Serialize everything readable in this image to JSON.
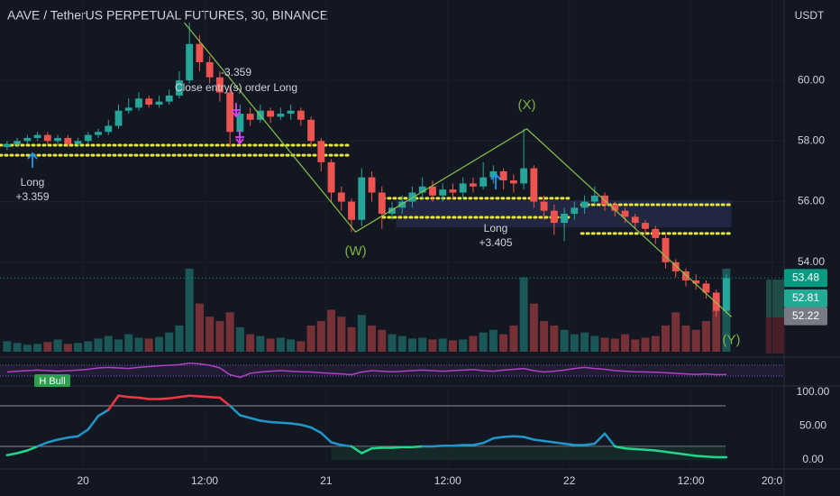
{
  "chart_data": {
    "type": "candlestick",
    "title": "AAVE / TetherUS PERPETUAL FUTURES, 30, BINANCE",
    "y_unit": "USDT",
    "xlim": [
      -8.2,
      69.2
    ],
    "xticks": [
      {
        "value": 0,
        "label": "20"
      },
      {
        "value": 12,
        "label": "12:00"
      },
      {
        "value": 24,
        "label": "21"
      },
      {
        "value": 36,
        "label": "12:00"
      },
      {
        "value": 48,
        "label": "22"
      },
      {
        "value": 60,
        "label": "12:00"
      },
      {
        "value": 68,
        "label": "20:0"
      }
    ],
    "ylim": [
      51.05,
      62.65
    ],
    "yticks": [
      {
        "value": 54,
        "label": "54.00"
      },
      {
        "value": 56,
        "label": "56.00"
      },
      {
        "value": 58,
        "label": "58.00"
      },
      {
        "value": 60,
        "label": "60.00"
      }
    ],
    "up_color": "#26a69a",
    "down_color": "#ef5350",
    "x": [
      -7.5,
      -6.5,
      -5.5,
      -4.5,
      -3.5,
      -2.5,
      -1.5,
      -0.5,
      0.5,
      1.5,
      2.5,
      3.5,
      4.5,
      5.5,
      6.5,
      7.5,
      8.5,
      9.5,
      10.5,
      11.5,
      12.5,
      13.5,
      14.5,
      15.5,
      16.5,
      17.5,
      18.5,
      19.5,
      20.5,
      21.5,
      22.5,
      23.5,
      24.5,
      25.5,
      26.5,
      27.5,
      28.5,
      29.5,
      30.5,
      31.5,
      32.5,
      33.5,
      34.5,
      35.5,
      36.5,
      37.5,
      38.5,
      39.5,
      40.5,
      41.5,
      42.5,
      43.5,
      44.5,
      45.5,
      46.5,
      47.5,
      48.5,
      49.5,
      50.5,
      51.5,
      52.5,
      53.5,
      54.5,
      55.5,
      56.5,
      57.5,
      58.5,
      59.5,
      60.5,
      61.5,
      62.5,
      63.5
    ],
    "open": [
      57.8,
      57.9,
      58.0,
      58.1,
      58.2,
      58.0,
      58.1,
      57.9,
      58.0,
      58.2,
      58.3,
      58.5,
      59.0,
      59.1,
      59.4,
      59.2,
      59.3,
      59.5,
      60.0,
      61.2,
      60.6,
      60.1,
      59.6,
      58.3,
      58.9,
      58.7,
      59.0,
      58.8,
      58.9,
      59.0,
      58.7,
      58.0,
      57.3,
      56.3,
      56.0,
      55.4,
      56.8,
      56.3,
      55.6,
      55.8,
      56.0,
      56.3,
      56.5,
      56.2,
      56.4,
      56.3,
      56.6,
      56.5,
      56.8,
      57.0,
      56.7,
      56.6,
      57.1,
      56.0,
      55.7,
      55.3,
      55.6,
      55.8,
      56.0,
      56.2,
      55.9,
      55.7,
      55.5,
      55.3,
      55.1,
      54.8,
      54.0,
      53.7,
      53.4,
      53.3,
      53.0,
      52.4
    ],
    "high": [
      58.0,
      58.1,
      58.2,
      58.3,
      58.3,
      58.2,
      58.2,
      58.1,
      58.3,
      58.4,
      58.7,
      59.2,
      59.4,
      59.6,
      59.5,
      59.5,
      59.7,
      60.3,
      61.9,
      61.5,
      60.8,
      60.3,
      59.8,
      59.2,
      59.1,
      59.2,
      59.1,
      59.1,
      59.2,
      59.1,
      58.8,
      58.1,
      57.4,
      56.5,
      56.1,
      57.1,
      57.0,
      56.5,
      56.0,
      56.2,
      56.5,
      56.8,
      56.7,
      56.6,
      56.6,
      56.8,
      56.8,
      57.3,
      57.2,
      57.1,
      56.9,
      58.4,
      57.2,
      56.2,
      55.9,
      55.8,
      56.0,
      56.2,
      56.5,
      56.3,
      56.0,
      55.8,
      55.6,
      55.4,
      55.2,
      54.9,
      54.1,
      53.8,
      53.6,
      53.4,
      53.1,
      53.6
    ],
    "low": [
      57.7,
      57.8,
      57.9,
      58.0,
      57.9,
      57.9,
      57.8,
      57.8,
      57.9,
      58.1,
      58.2,
      58.4,
      58.9,
      59.0,
      59.1,
      59.1,
      59.2,
      59.4,
      59.9,
      60.3,
      59.9,
      59.3,
      57.8,
      58.1,
      58.5,
      58.6,
      58.6,
      58.7,
      58.7,
      58.5,
      57.8,
      57.0,
      56.0,
      55.7,
      55.0,
      55.2,
      56.0,
      55.1,
      55.4,
      55.6,
      55.8,
      56.1,
      56.0,
      56.0,
      56.1,
      56.1,
      56.3,
      56.4,
      56.6,
      56.4,
      56.3,
      56.4,
      55.8,
      55.4,
      54.9,
      54.7,
      55.4,
      55.6,
      55.9,
      55.7,
      55.5,
      55.3,
      55.1,
      54.9,
      54.6,
      53.8,
      53.5,
      53.2,
      53.1,
      52.8,
      52.2,
      52.3
    ],
    "close": [
      57.9,
      58.0,
      58.1,
      58.2,
      58.0,
      58.1,
      57.9,
      58.0,
      58.2,
      58.3,
      58.5,
      59.0,
      59.1,
      59.4,
      59.2,
      59.3,
      59.5,
      60.0,
      61.2,
      60.6,
      60.1,
      59.6,
      58.3,
      58.9,
      58.7,
      59.0,
      58.8,
      58.9,
      59.0,
      58.7,
      58.0,
      57.3,
      56.3,
      56.0,
      55.4,
      56.8,
      56.3,
      55.6,
      55.8,
      56.0,
      56.3,
      56.5,
      56.2,
      56.4,
      56.3,
      56.6,
      56.5,
      56.8,
      57.0,
      56.7,
      56.6,
      57.1,
      56.0,
      55.7,
      55.3,
      55.6,
      55.8,
      56.0,
      56.2,
      55.9,
      55.7,
      55.5,
      55.3,
      55.1,
      54.8,
      54.0,
      53.7,
      53.4,
      53.3,
      53.0,
      52.4,
      53.48
    ],
    "volume": {
      "ylim": [
        0,
        100
      ],
      "values": [
        12,
        10,
        8,
        9,
        11,
        14,
        9,
        10,
        12,
        15,
        18,
        14,
        20,
        16,
        15,
        17,
        22,
        30,
        95,
        55,
        40,
        35,
        45,
        28,
        20,
        18,
        15,
        16,
        14,
        12,
        30,
        35,
        48,
        40,
        28,
        42,
        30,
        25,
        20,
        18,
        15,
        16,
        14,
        15,
        13,
        14,
        18,
        22,
        25,
        20,
        30,
        85,
        55,
        35,
        30,
        25,
        20,
        22,
        18,
        16,
        15,
        20,
        14,
        16,
        18,
        30,
        45,
        30,
        25,
        35,
        48,
        95
      ]
    },
    "price_labels": [
      {
        "value": 53.48,
        "color": "#089981"
      },
      {
        "value": 52.81,
        "color": "#22ab94"
      },
      {
        "value": 52.22,
        "color": "#787b86"
      }
    ],
    "levels": [
      {
        "value": 57.86,
        "x": [
          -8.2,
          26.3
        ]
      },
      {
        "value": 57.53,
        "x": [
          -8.2,
          26.3
        ]
      },
      {
        "value": 56.11,
        "x": [
          29.6,
          48.0
        ]
      },
      {
        "value": 55.48,
        "x": [
          29.6,
          48.0
        ]
      },
      {
        "value": 55.9,
        "x": [
          49.2,
          64.0
        ]
      },
      {
        "value": 54.95,
        "x": [
          49.2,
          64.0
        ]
      }
    ],
    "zone": {
      "y": [
        55.15,
        56.05
      ],
      "x": [
        30.9,
        64.0
      ]
    },
    "wave": {
      "x": [
        10.0,
        26.9,
        43.8,
        64.0
      ],
      "y": [
        61.9,
        55.0,
        58.4,
        52.2
      ],
      "labels": [
        "(W)",
        "(X)",
        "(Y)"
      ]
    },
    "annotations": [
      "-3.359",
      "Close entry(s) order Long",
      "Long",
      "+3.359",
      "Long",
      "+3.405"
    ],
    "oscillator": {
      "ylim": [
        0,
        100
      ],
      "levels": [
        70,
        30
      ],
      "badge": "H Bull",
      "color": "#b040c8",
      "values": [
        45,
        48,
        50,
        52,
        50,
        48,
        50,
        52,
        55,
        60,
        62,
        60,
        58,
        62,
        65,
        68,
        70,
        72,
        78,
        75,
        70,
        60,
        35,
        25,
        40,
        45,
        48,
        50,
        48,
        46,
        45,
        42,
        40,
        38,
        35,
        45,
        50,
        48,
        46,
        48,
        50,
        52,
        50,
        48,
        50,
        52,
        54,
        50,
        48,
        52,
        55,
        58,
        50,
        45,
        48,
        52,
        58,
        62,
        58,
        55,
        50,
        48,
        46,
        45,
        44,
        42,
        40,
        38,
        36,
        38,
        35,
        36
      ]
    },
    "indicator": {
      "ylim": [
        0,
        100
      ],
      "yticks": [
        {
          "value": 0,
          "label": "0.00"
        },
        {
          "value": 50,
          "label": "50.00"
        },
        {
          "value": 100,
          "label": "100.00"
        }
      ],
      "levels": [
        80,
        20
      ],
      "colors": {
        "high": "#f23645",
        "mid": "#2196c8",
        "low": "#22d68a"
      },
      "values": [
        7,
        10,
        14,
        20,
        26,
        30,
        33,
        35,
        45,
        65,
        74,
        95,
        93,
        92,
        90,
        90,
        91,
        93,
        95,
        94,
        93,
        92,
        80,
        66,
        62,
        58,
        56,
        55,
        54,
        52,
        48,
        40,
        26,
        22,
        20,
        10,
        17,
        18,
        18,
        19,
        19,
        20,
        20,
        21,
        21,
        22,
        22,
        25,
        32,
        34,
        35,
        34,
        30,
        28,
        26,
        24,
        22,
        22,
        24,
        39,
        20,
        17,
        16,
        15,
        14,
        12,
        10,
        8,
        6,
        5,
        4,
        4
      ]
    }
  }
}
